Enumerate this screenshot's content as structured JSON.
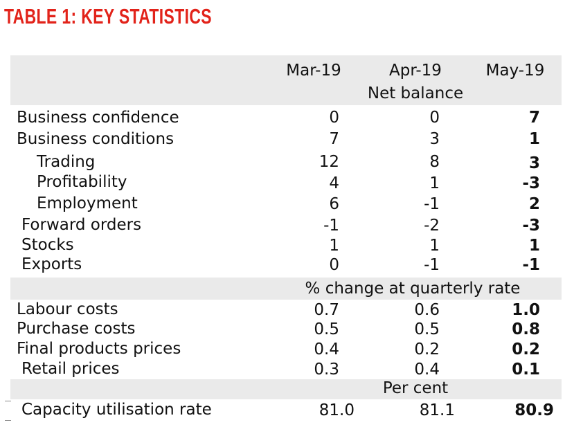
{
  "title": "TABLE 1: KEY STATISTICS",
  "columns": [
    "Mar-19",
    "Apr-19",
    "May-19"
  ],
  "sections": [
    {
      "heading": "Net balance",
      "rows": [
        {
          "label": "Business confidence",
          "values": [
            "0",
            "0",
            "7"
          ]
        },
        {
          "label": "Business conditions",
          "values": [
            "7",
            "3",
            "1"
          ]
        },
        {
          "label": "Trading",
          "values": [
            "12",
            "8",
            "3"
          ]
        },
        {
          "label": "Profitability",
          "values": [
            "4",
            "1",
            "-3"
          ]
        },
        {
          "label": "Employment",
          "values": [
            "6",
            "-1",
            "2"
          ]
        },
        {
          "label": "Forward orders",
          "values": [
            "-1",
            "-2",
            "-3"
          ]
        },
        {
          "label": "Stocks",
          "values": [
            "1",
            "1",
            "1"
          ]
        },
        {
          "label": "Exports",
          "values": [
            "0",
            "-1",
            "-1"
          ]
        }
      ]
    },
    {
      "heading": "% change at quarterly rate",
      "rows": [
        {
          "label": "Labour costs",
          "values": [
            "0.7",
            "0.6",
            "1.0"
          ]
        },
        {
          "label": "Purchase costs",
          "values": [
            "0.5",
            "0.5",
            "0.8"
          ]
        },
        {
          "label": "Final products prices",
          "values": [
            "0.4",
            "0.2",
            "0.2"
          ]
        },
        {
          "label": "Retail prices",
          "values": [
            "0.3",
            "0.4",
            "0.1"
          ]
        }
      ]
    },
    {
      "heading": "Per cent",
      "rows": [
        {
          "label": "Capacity utilisation rate",
          "values": [
            "81.0",
            "81.1",
            "80.9"
          ]
        }
      ]
    }
  ],
  "colors": {
    "title": "#e2231a",
    "band": "#eaeaea"
  }
}
